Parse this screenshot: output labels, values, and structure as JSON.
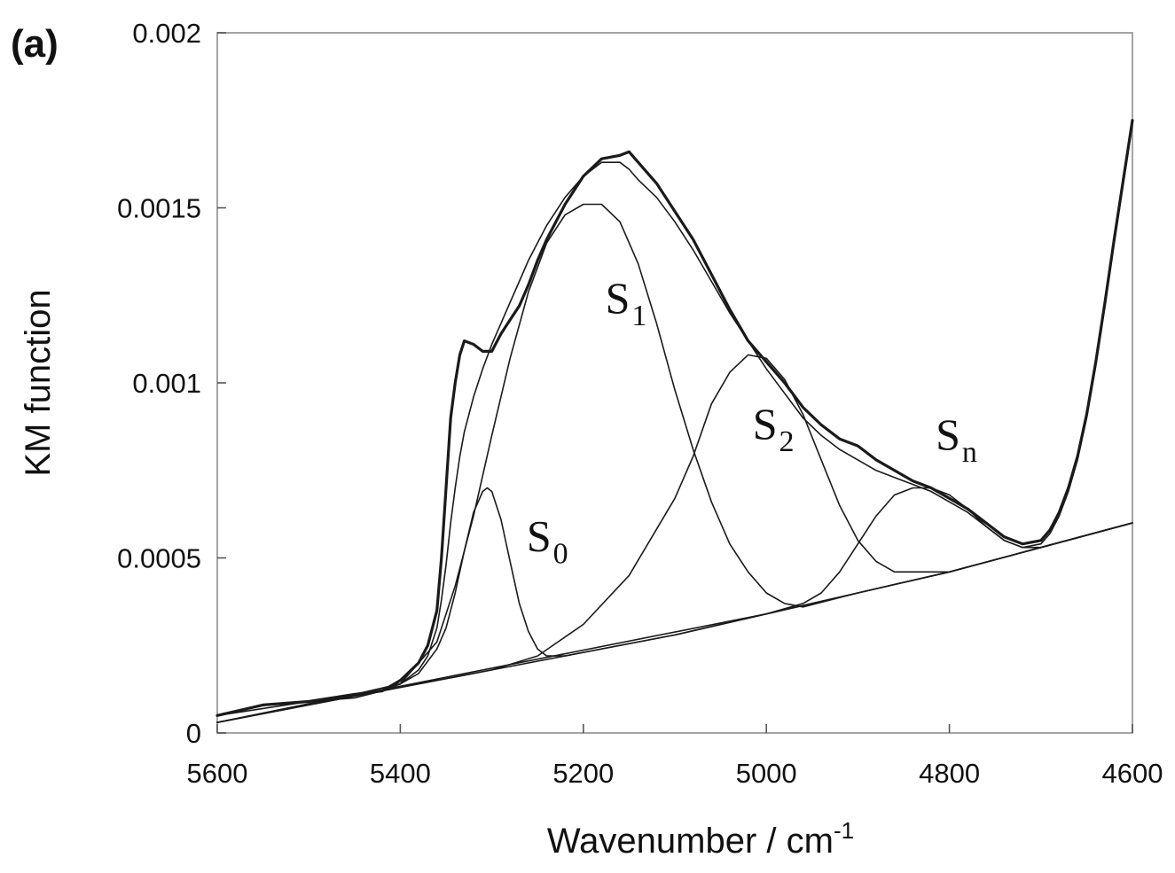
{
  "chart_data": {
    "type": "line",
    "panel_label": "(a)",
    "xlabel": "Wavenumber / cm",
    "xlabel_sup": "-1",
    "ylabel": "KM function",
    "xlim": [
      5600,
      4600
    ],
    "ylim": [
      0,
      0.002
    ],
    "x_ticks": [
      5600,
      5400,
      5200,
      5000,
      4800,
      4600
    ],
    "x_tick_labels": [
      "5600",
      "5400",
      "5200",
      "5000",
      "4800",
      "4600"
    ],
    "y_ticks": [
      0,
      0.0005,
      0.001,
      0.0015,
      0.002
    ],
    "y_tick_labels": [
      "0",
      "0.0005",
      "0.001",
      "0.0015",
      "0.002"
    ],
    "grid": false,
    "peak_labels": [
      {
        "main": "S",
        "sub": "0",
        "x": 5262,
        "y": 0.00052
      },
      {
        "main": "S",
        "sub": "1",
        "x": 5176,
        "y": 0.0012
      },
      {
        "main": "S",
        "sub": "2",
        "x": 5015,
        "y": 0.00084
      },
      {
        "main": "S",
        "sub": "n",
        "x": 4815,
        "y": 0.00081
      }
    ],
    "series": [
      {
        "role": "measured",
        "x": [
          5600,
          5550,
          5500,
          5450,
          5420,
          5400,
          5380,
          5370,
          5360,
          5355,
          5350,
          5345,
          5340,
          5335,
          5330,
          5320,
          5310,
          5300,
          5290,
          5280,
          5270,
          5260,
          5250,
          5240,
          5220,
          5200,
          5180,
          5160,
          5150,
          5140,
          5120,
          5100,
          5080,
          5060,
          5040,
          5020,
          5000,
          4980,
          4960,
          4940,
          4920,
          4900,
          4880,
          4860,
          4840,
          4820,
          4800,
          4780,
          4760,
          4740,
          4720,
          4700,
          4690,
          4680,
          4670,
          4660,
          4650,
          4640,
          4630,
          4620,
          4610,
          4600
        ],
        "y": [
          5e-05,
          8e-05,
          9e-05,
          0.00011,
          0.00012,
          0.00015,
          0.0002,
          0.00025,
          0.00035,
          0.0005,
          0.0007,
          0.0009,
          0.001,
          0.00108,
          0.00112,
          0.00111,
          0.00109,
          0.00109,
          0.00114,
          0.00118,
          0.00122,
          0.00128,
          0.00135,
          0.00141,
          0.00151,
          0.00159,
          0.00164,
          0.00165,
          0.00166,
          0.00163,
          0.00157,
          0.00149,
          0.00141,
          0.00131,
          0.00121,
          0.00112,
          0.00106,
          0.001,
          0.00093,
          0.00088,
          0.00084,
          0.00082,
          0.00078,
          0.00075,
          0.00072,
          0.0007,
          0.00067,
          0.00064,
          0.0006,
          0.00056,
          0.00054,
          0.00055,
          0.00058,
          0.00063,
          0.0007,
          0.00079,
          0.00091,
          0.00106,
          0.00123,
          0.00141,
          0.00158,
          0.00175
        ]
      },
      {
        "role": "fit_sum",
        "x": [
          5600,
          5550,
          5500,
          5450,
          5420,
          5400,
          5380,
          5370,
          5360,
          5355,
          5350,
          5345,
          5340,
          5335,
          5330,
          5320,
          5310,
          5300,
          5290,
          5280,
          5270,
          5260,
          5250,
          5240,
          5220,
          5200,
          5180,
          5160,
          5150,
          5140,
          5120,
          5100,
          5080,
          5060,
          5040,
          5020,
          5000,
          4980,
          4960,
          4940,
          4920,
          4900,
          4880,
          4860,
          4840,
          4820,
          4800,
          4780,
          4760,
          4740,
          4720,
          4700,
          4690,
          4680,
          4670,
          4660,
          4650,
          4640,
          4630,
          4620,
          4610,
          4600
        ],
        "y": [
          5e-05,
          7e-05,
          9e-05,
          0.0001,
          0.00012,
          0.00014,
          0.00018,
          0.00022,
          0.0003,
          0.00038,
          0.00048,
          0.0006,
          0.0007,
          0.00079,
          0.00086,
          0.00096,
          0.00104,
          0.00111,
          0.00117,
          0.00123,
          0.00129,
          0.00135,
          0.0014,
          0.00145,
          0.00153,
          0.00159,
          0.00163,
          0.00163,
          0.00161,
          0.00158,
          0.00153,
          0.00146,
          0.00138,
          0.00129,
          0.0012,
          0.00112,
          0.00104,
          0.00097,
          0.0009,
          0.00085,
          0.00081,
          0.00078,
          0.00075,
          0.00073,
          0.00071,
          0.00069,
          0.00066,
          0.00063,
          0.00059,
          0.00055,
          0.00053,
          0.00054,
          0.00057,
          0.00062,
          0.00069,
          0.00078,
          0.0009,
          0.00105,
          0.00122,
          0.0014,
          0.00157,
          0.00174
        ]
      },
      {
        "role": "baseline",
        "x": [
          5600,
          5500,
          5400,
          5300,
          5200,
          5100,
          5000,
          4900,
          4800,
          4700,
          4600
        ],
        "y": [
          3e-05,
          8e-05,
          0.00013,
          0.00018,
          0.00023,
          0.00028,
          0.00034,
          0.0004,
          0.00046,
          0.00053,
          0.0006
        ]
      },
      {
        "role": "component",
        "name_label": "S0",
        "x": [
          5600,
          5450,
          5400,
          5380,
          5360,
          5350,
          5340,
          5330,
          5320,
          5310,
          5305,
          5300,
          5290,
          5280,
          5270,
          5260,
          5250,
          5240,
          5220,
          5200,
          5100,
          5000,
          4900,
          4800,
          4700,
          4600
        ],
        "y": [
          3e-05,
          0.00011,
          0.00014,
          0.00017,
          0.00024,
          0.0003,
          0.0004,
          0.00052,
          0.00063,
          0.00069,
          0.0007,
          0.00069,
          0.00061,
          0.00049,
          0.00037,
          0.00029,
          0.00024,
          0.00022,
          0.00022,
          0.00023,
          0.00028,
          0.00034,
          0.0004,
          0.00046,
          0.00053,
          0.0006
        ]
      },
      {
        "role": "component",
        "name_label": "S1",
        "x": [
          5600,
          5450,
          5400,
          5360,
          5340,
          5320,
          5300,
          5280,
          5260,
          5240,
          5220,
          5200,
          5180,
          5160,
          5140,
          5120,
          5100,
          5080,
          5060,
          5040,
          5020,
          5000,
          4980,
          4960,
          4900,
          4800,
          4700,
          4600
        ],
        "y": [
          3e-05,
          0.00011,
          0.00014,
          0.00026,
          0.00042,
          0.00062,
          0.00085,
          0.00107,
          0.00126,
          0.0014,
          0.00148,
          0.00151,
          0.00151,
          0.00146,
          0.00134,
          0.00117,
          0.00098,
          0.00081,
          0.00066,
          0.00054,
          0.00046,
          0.0004,
          0.00037,
          0.00036,
          0.0004,
          0.00046,
          0.00053,
          0.0006
        ]
      },
      {
        "role": "component",
        "name_label": "S2",
        "x": [
          5600,
          5300,
          5250,
          5200,
          5150,
          5100,
          5080,
          5060,
          5040,
          5020,
          5000,
          4980,
          4960,
          4940,
          4920,
          4900,
          4880,
          4860,
          4800,
          4700,
          4600
        ],
        "y": [
          3e-05,
          0.00018,
          0.00022,
          0.00031,
          0.00045,
          0.00067,
          0.00079,
          0.00094,
          0.00103,
          0.00108,
          0.00107,
          0.00101,
          0.00091,
          0.00078,
          0.00065,
          0.00055,
          0.00049,
          0.00046,
          0.00046,
          0.00053,
          0.0006
        ]
      },
      {
        "role": "component",
        "name_label": "Sn",
        "x": [
          5600,
          5000,
          4960,
          4940,
          4920,
          4900,
          4880,
          4860,
          4840,
          4830,
          4820,
          4800,
          4780,
          4760,
          4740,
          4720,
          4700,
          4600
        ],
        "y": [
          3e-05,
          0.00034,
          0.00037,
          0.0004,
          0.00046,
          0.00054,
          0.00062,
          0.00068,
          0.0007,
          0.0007,
          0.0007,
          0.00068,
          0.00064,
          0.00059,
          0.00055,
          0.00053,
          0.00053,
          0.0006
        ]
      }
    ]
  }
}
